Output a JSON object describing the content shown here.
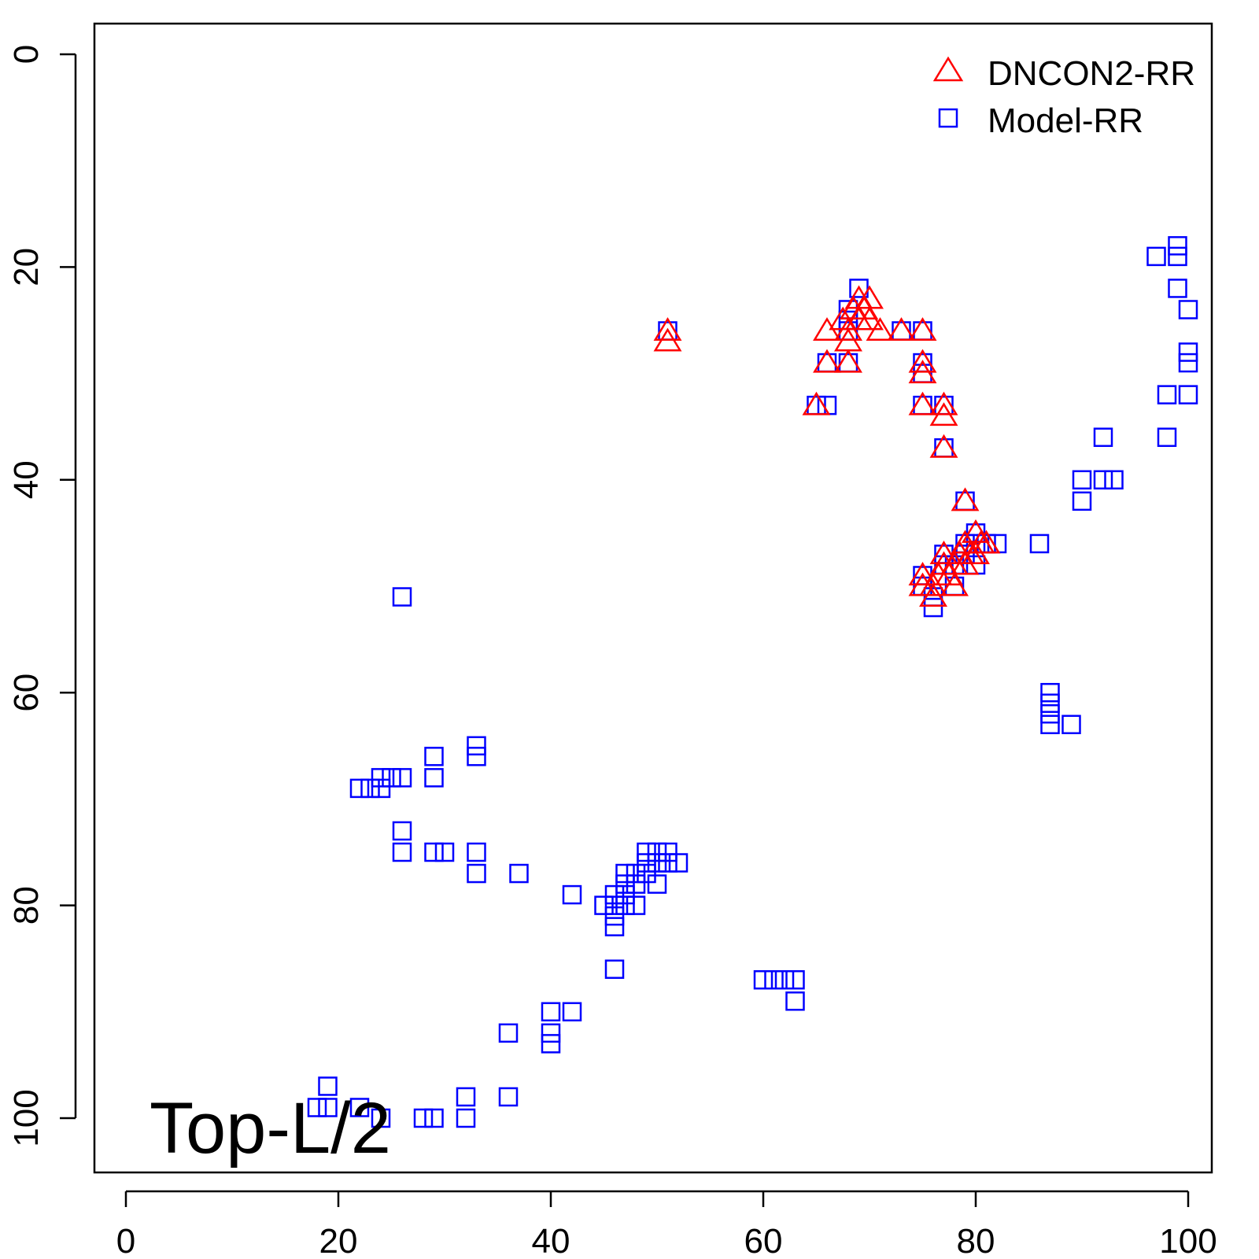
{
  "chart_data": {
    "type": "scatter",
    "title": "",
    "xlabel": "",
    "ylabel": "",
    "xlim": [
      -3,
      105
    ],
    "ylim": [
      105,
      -3
    ],
    "x_ticks": [
      "0",
      "20",
      "40",
      "60",
      "80",
      "100"
    ],
    "y_ticks": [
      "0",
      "20",
      "40",
      "60",
      "80",
      "100"
    ],
    "annotation": "Top-L/2",
    "legend_position": "top-right",
    "grid": false,
    "series": [
      {
        "name": "DNCON2-RR",
        "marker": "triangle",
        "color": "#ff0000",
        "points": [
          [
            51,
            26
          ],
          [
            51,
            27
          ],
          [
            65,
            33
          ],
          [
            66,
            26
          ],
          [
            66,
            29
          ],
          [
            67.5,
            25
          ],
          [
            68,
            27
          ],
          [
            68,
            29
          ],
          [
            68,
            26
          ],
          [
            68.5,
            24
          ],
          [
            69,
            23
          ],
          [
            69,
            25
          ],
          [
            69.5,
            24
          ],
          [
            70,
            25
          ],
          [
            70,
            23
          ],
          [
            71,
            26
          ],
          [
            73,
            26
          ],
          [
            75,
            26
          ],
          [
            75,
            29
          ],
          [
            75,
            30
          ],
          [
            75,
            33
          ],
          [
            77,
            33
          ],
          [
            77,
            34
          ],
          [
            77,
            37
          ],
          [
            79,
            42
          ],
          [
            75,
            49
          ],
          [
            75,
            50
          ],
          [
            76,
            50
          ],
          [
            76,
            51
          ],
          [
            76.5,
            49
          ],
          [
            77,
            48
          ],
          [
            77,
            47
          ],
          [
            77.5,
            49
          ],
          [
            78,
            48
          ],
          [
            78,
            50
          ],
          [
            78.5,
            47
          ],
          [
            79,
            46
          ],
          [
            79,
            48
          ],
          [
            79.5,
            47
          ],
          [
            80,
            45
          ],
          [
            80,
            47
          ],
          [
            80.5,
            46
          ],
          [
            81,
            46
          ]
        ]
      },
      {
        "name": "Model-RR",
        "marker": "square",
        "color": "#0000ff",
        "points": [
          [
            51,
            26
          ],
          [
            69,
            22
          ],
          [
            68,
            24
          ],
          [
            68,
            25
          ],
          [
            68,
            26
          ],
          [
            66,
            29
          ],
          [
            68,
            29
          ],
          [
            65,
            33
          ],
          [
            66,
            33
          ],
          [
            73,
            26
          ],
          [
            75,
            26
          ],
          [
            75,
            29
          ],
          [
            75,
            30
          ],
          [
            75,
            33
          ],
          [
            77,
            33
          ],
          [
            77,
            37
          ],
          [
            79,
            42
          ],
          [
            75,
            49
          ],
          [
            75,
            50
          ],
          [
            76,
            51
          ],
          [
            76,
            52
          ],
          [
            77,
            47
          ],
          [
            77,
            48
          ],
          [
            78,
            48
          ],
          [
            78,
            50
          ],
          [
            79,
            46
          ],
          [
            79,
            47
          ],
          [
            80,
            45
          ],
          [
            80,
            46
          ],
          [
            80,
            48
          ],
          [
            81,
            46
          ],
          [
            82,
            46
          ],
          [
            86,
            46
          ],
          [
            87,
            60
          ],
          [
            87,
            61
          ],
          [
            87,
            62
          ],
          [
            87,
            63
          ],
          [
            89,
            63
          ],
          [
            90,
            40
          ],
          [
            90,
            42
          ],
          [
            92,
            36
          ],
          [
            92,
            40
          ],
          [
            93,
            40
          ],
          [
            97,
            19
          ],
          [
            98,
            32
          ],
          [
            98,
            36
          ],
          [
            99,
            18
          ],
          [
            99,
            19
          ],
          [
            99,
            22
          ],
          [
            100,
            24
          ],
          [
            100,
            28
          ],
          [
            100,
            29
          ],
          [
            100,
            32
          ],
          [
            26,
            51
          ],
          [
            22,
            69
          ],
          [
            23,
            69
          ],
          [
            24,
            68
          ],
          [
            24,
            69
          ],
          [
            25,
            68
          ],
          [
            26,
            68
          ],
          [
            26,
            73
          ],
          [
            26,
            75
          ],
          [
            29,
            66
          ],
          [
            29,
            68
          ],
          [
            29,
            75
          ],
          [
            30,
            75
          ],
          [
            33,
            65
          ],
          [
            33,
            66
          ],
          [
            33,
            75
          ],
          [
            33,
            77
          ],
          [
            37,
            77
          ],
          [
            42,
            79
          ],
          [
            45,
            80
          ],
          [
            46,
            79
          ],
          [
            46,
            80
          ],
          [
            46,
            81
          ],
          [
            46,
            82
          ],
          [
            46,
            86
          ],
          [
            47,
            77
          ],
          [
            47,
            78
          ],
          [
            47,
            79
          ],
          [
            47,
            80
          ],
          [
            48,
            77
          ],
          [
            48,
            78
          ],
          [
            48,
            80
          ],
          [
            49,
            75
          ],
          [
            49,
            76
          ],
          [
            49,
            77
          ],
          [
            50,
            75
          ],
          [
            50,
            76
          ],
          [
            50,
            78
          ],
          [
            51,
            75
          ],
          [
            51,
            76
          ],
          [
            52,
            76
          ],
          [
            60,
            87
          ],
          [
            61,
            87
          ],
          [
            62,
            87
          ],
          [
            63,
            87
          ],
          [
            63,
            89
          ],
          [
            40,
            90
          ],
          [
            40,
            92
          ],
          [
            40,
            93
          ],
          [
            42,
            90
          ],
          [
            36,
            92
          ],
          [
            36,
            98
          ],
          [
            19,
            97
          ],
          [
            18,
            99
          ],
          [
            19,
            99
          ],
          [
            22,
            99
          ],
          [
            24,
            100
          ],
          [
            28,
            100
          ],
          [
            29,
            100
          ],
          [
            32,
            98
          ],
          [
            32,
            100
          ]
        ]
      }
    ]
  }
}
